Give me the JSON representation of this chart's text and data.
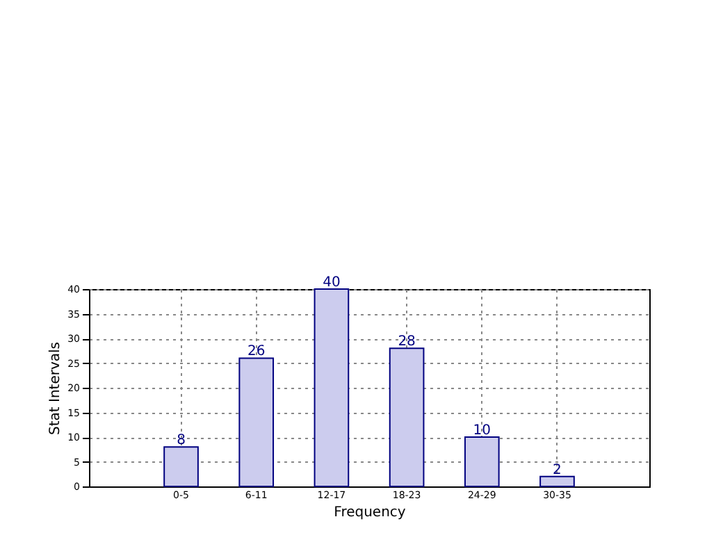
{
  "chart_data": {
    "type": "bar",
    "xlabel": "Frequency",
    "ylabel": "Stat Intervals",
    "categories": [
      "0-5",
      "6-11",
      "12-17",
      "18-23",
      "24-29",
      "30-35"
    ],
    "values": [
      8,
      26,
      40,
      28,
      10,
      2
    ],
    "color": "#ccccee",
    "ylim": [
      0,
      40
    ],
    "yticks": [
      0,
      5,
      10,
      15,
      20,
      25,
      30,
      35,
      40
    ],
    "grid": true,
    "data_labels": true
  }
}
